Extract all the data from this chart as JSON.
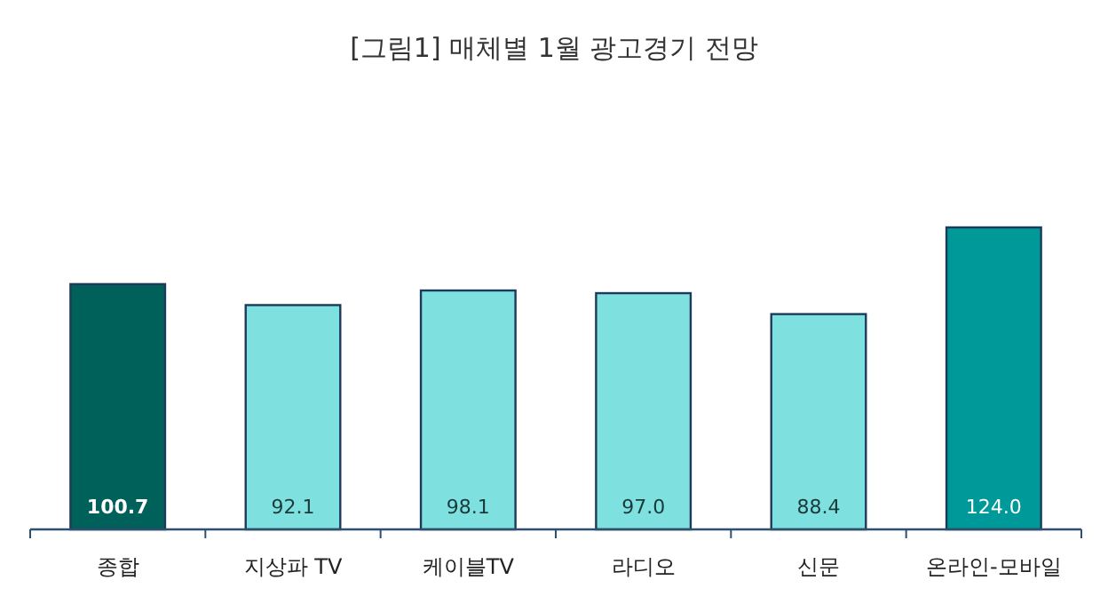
{
  "chart_data": {
    "type": "bar",
    "title": "[그림1] 매체별 1월 광고경기 전망",
    "categories": [
      "종합",
      "지상파 TV",
      "케이블TV",
      "라디오",
      "신문",
      "온라인-모바일"
    ],
    "values": [
      100.7,
      92.1,
      98.1,
      97.0,
      88.4,
      124.0
    ],
    "value_labels": [
      "100.7",
      "92.1",
      "98.1",
      "97.0",
      "88.4",
      "124.0"
    ],
    "colors": [
      "#00605a",
      "#7fe0e0",
      "#7fe0e0",
      "#7fe0e0",
      "#7fe0e0",
      "#00999a"
    ],
    "tick_labels": "x"
  }
}
